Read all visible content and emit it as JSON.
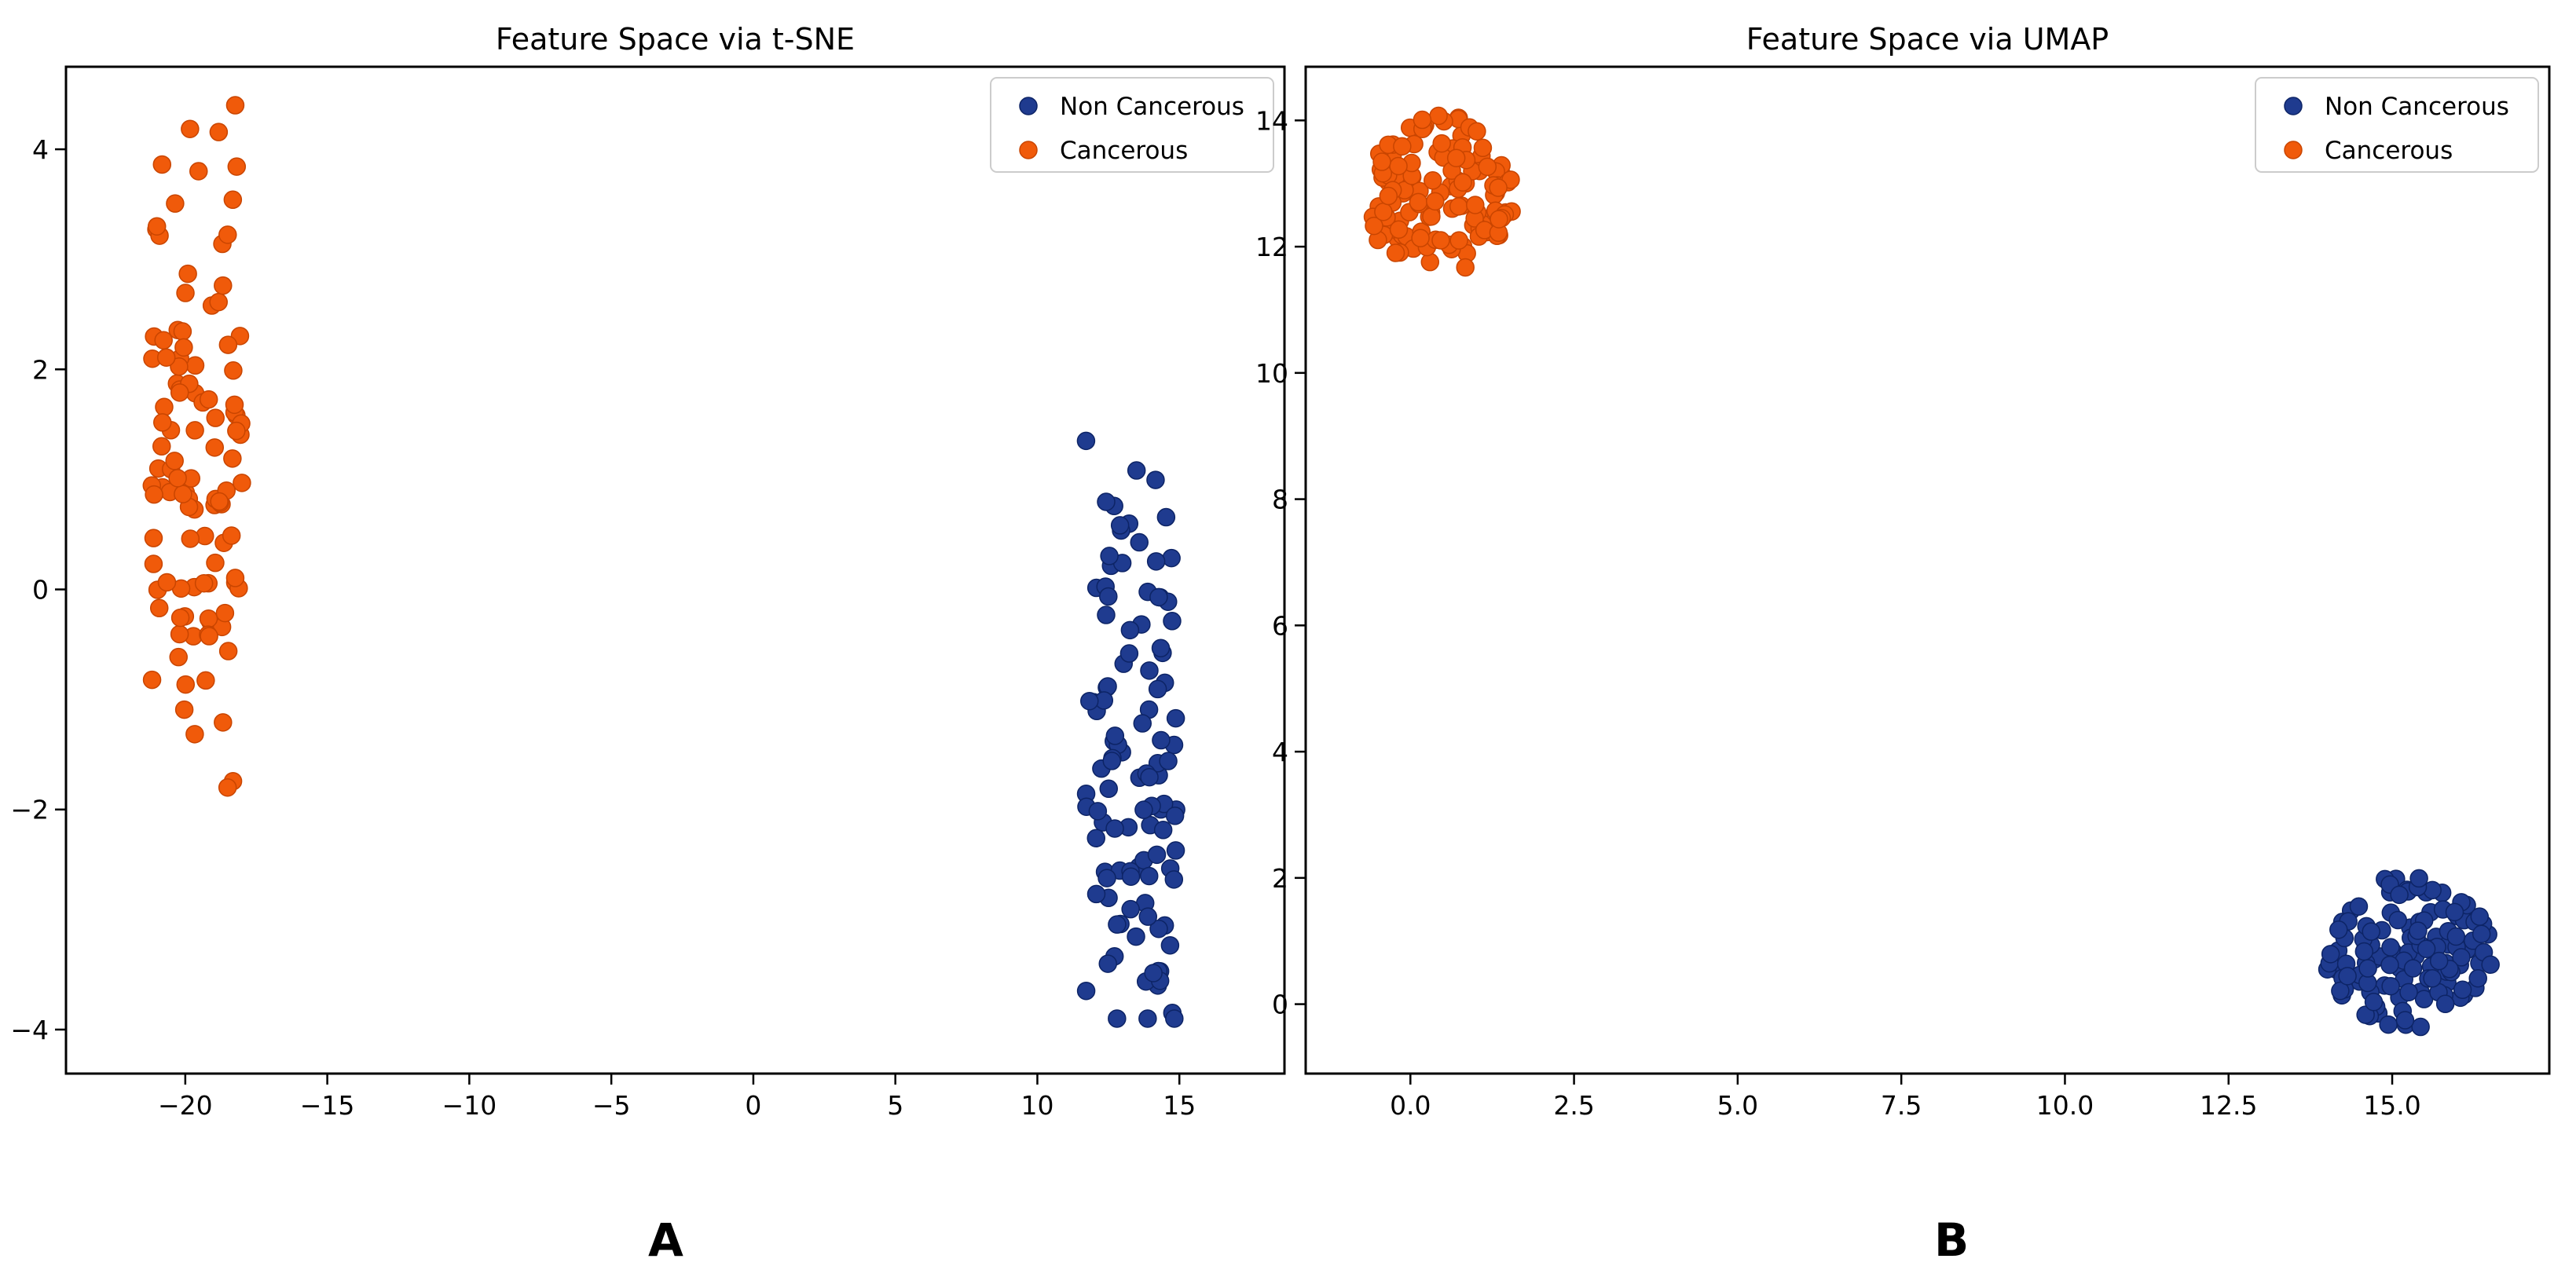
{
  "chart_data": [
    {
      "type": "scatter",
      "title": "Feature Space via t-SNE",
      "panel_label": "A",
      "xlabel": "",
      "ylabel": "",
      "xlim": [
        -24.2,
        18.7
      ],
      "ylim": [
        -4.4,
        4.75
      ],
      "xticks": [
        -20,
        -15,
        -10,
        -5,
        0,
        5,
        10,
        15
      ],
      "xtick_labels": [
        "−20",
        "−15",
        "−10",
        "−5",
        "0",
        "5",
        "10",
        "15"
      ],
      "yticks": [
        -4,
        -2,
        0,
        2,
        4
      ],
      "ytick_labels": [
        "−4",
        "−2",
        "0",
        "2",
        "4"
      ],
      "legend_position": "top-right",
      "series": [
        {
          "name": "Non Cancerous",
          "color": "#1f3b8f",
          "edge": "#0d2466",
          "x_center": 13.3,
          "x_spread": 1.6,
          "y_center": -1.45,
          "y_spread": 1.35,
          "y_range": [
            -3.9,
            1.35
          ],
          "n": 110
        },
        {
          "name": "Cancerous",
          "color": "#f05a0a",
          "edge": "#c94500",
          "x_center": -19.6,
          "x_spread": 1.6,
          "y_center": 1.25,
          "y_spread": 1.35,
          "y_range": [
            -1.8,
            4.4
          ],
          "n": 110
        }
      ]
    },
    {
      "type": "scatter",
      "title": "Feature Space via UMAP",
      "panel_label": "B",
      "xlabel": "",
      "ylabel": "",
      "xlim": [
        -1.6,
        17.4
      ],
      "ylim": [
        -1.1,
        14.85
      ],
      "xticks": [
        0.0,
        2.5,
        5.0,
        7.5,
        10.0,
        12.5,
        15.0
      ],
      "xtick_labels": [
        "0.0",
        "2.5",
        "5.0",
        "7.5",
        "10.0",
        "12.5",
        "15.0"
      ],
      "yticks": [
        0,
        2,
        4,
        6,
        8,
        10,
        12,
        14
      ],
      "ytick_labels": [
        "0",
        "2",
        "4",
        "6",
        "8",
        "10",
        "12",
        "14"
      ],
      "legend_position": "top-right",
      "series": [
        {
          "name": "Non Cancerous",
          "color": "#1f3b8f",
          "edge": "#0d2466",
          "x_center": 15.25,
          "x_radius": 1.3,
          "y_center": 0.85,
          "y_radius": 1.25,
          "n": 130
        },
        {
          "name": "Cancerous",
          "color": "#f05a0a",
          "edge": "#c94500",
          "x_center": 0.45,
          "x_radius": 1.15,
          "y_center": 12.8,
          "y_radius": 1.3,
          "n": 130
        }
      ]
    }
  ]
}
